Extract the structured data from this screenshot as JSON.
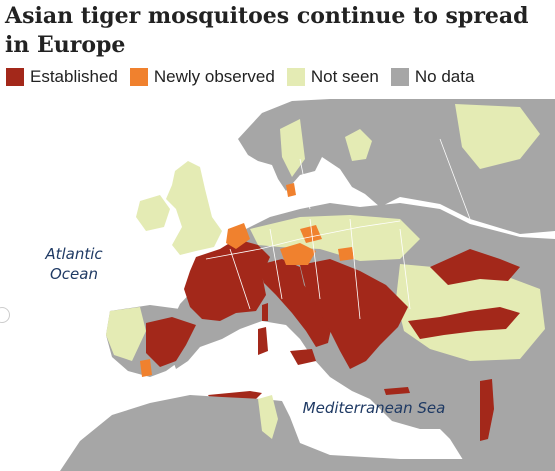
{
  "title": "Asian tiger mosquitoes continue to spread in Europe",
  "legend": [
    {
      "label": "Established",
      "color": "#a3281a"
    },
    {
      "label": "Newly observed",
      "color": "#f0812e"
    },
    {
      "label": "Not seen",
      "color": "#e4ebb4"
    },
    {
      "label": "No data",
      "color": "#a6a6a6"
    }
  ],
  "map": {
    "sea_color": "#ffffff",
    "border_color": "#ffffff",
    "labels": {
      "atlantic_line1": "Atlantic",
      "atlantic_line2": "Ocean",
      "mediterranean": "Mediterranean Sea"
    }
  }
}
